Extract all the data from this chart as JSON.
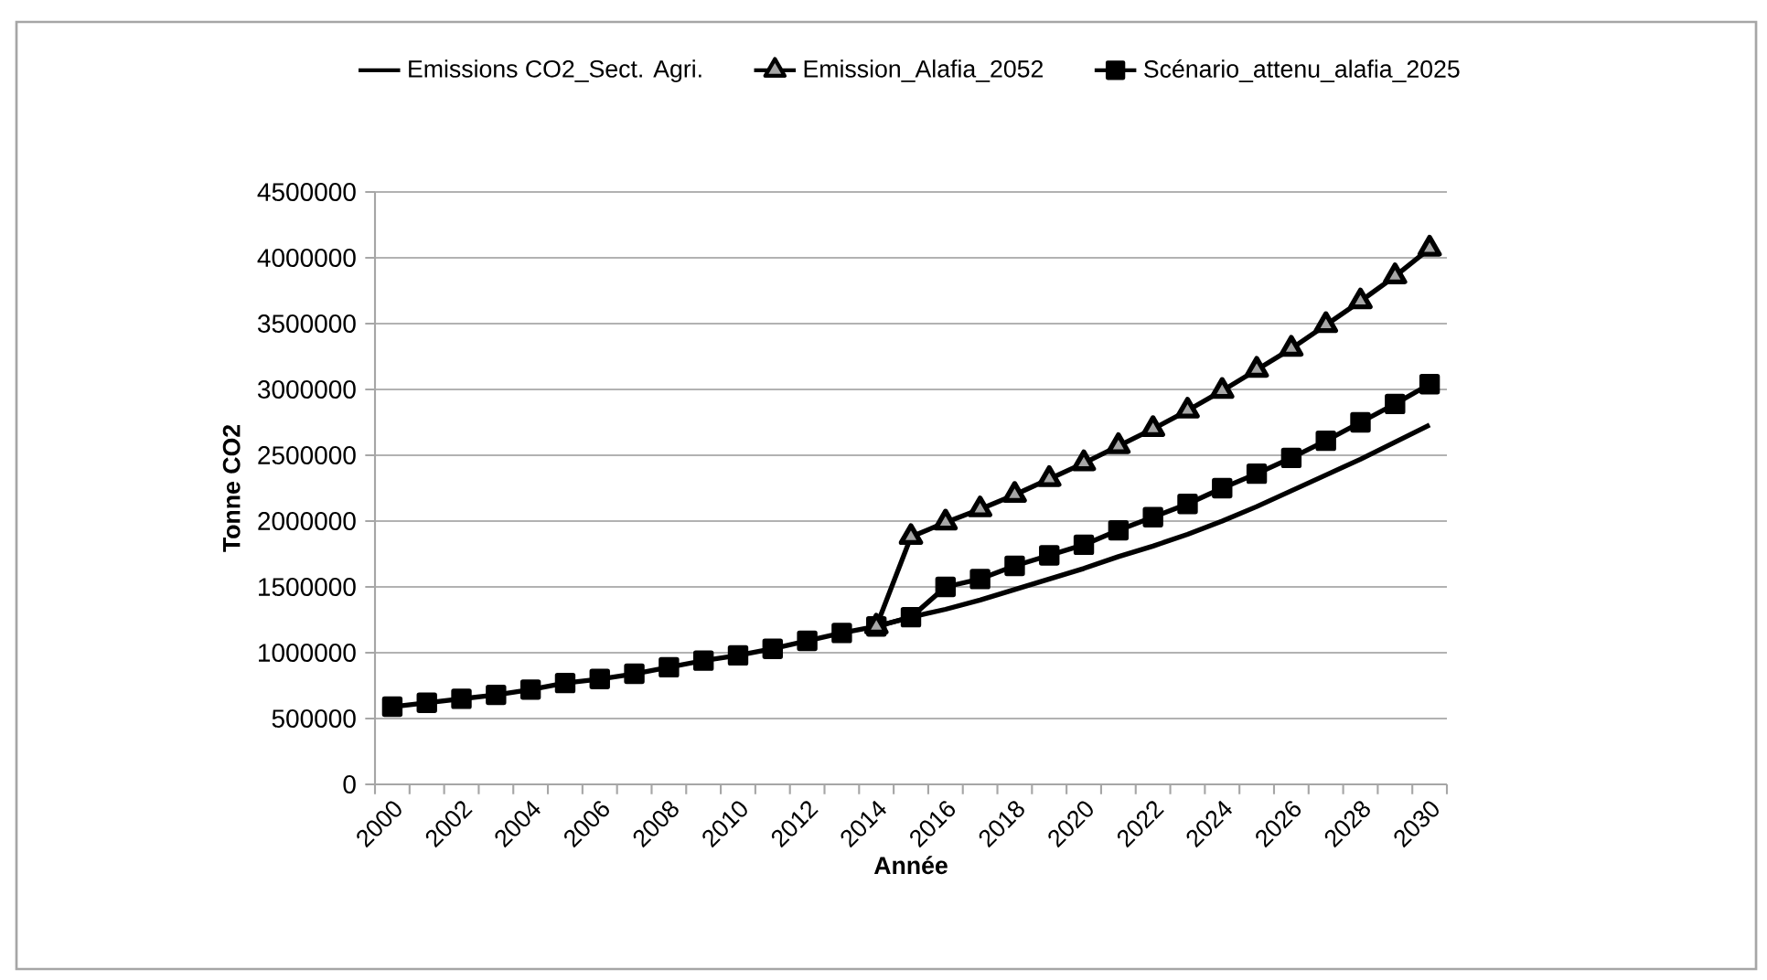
{
  "chart_data": {
    "type": "line",
    "xlabel": "Année",
    "ylabel": "Tonne CO2",
    "categories": [
      "2000",
      null,
      "2002",
      null,
      "2004",
      null,
      "2006",
      null,
      "2008",
      null,
      "2010",
      null,
      "2012",
      null,
      "2014",
      null,
      "2016",
      null,
      "2018",
      null,
      "2020",
      null,
      "2022",
      null,
      "2024",
      null,
      "2026",
      null,
      "2028",
      null,
      "2030"
    ],
    "series": [
      {
        "name": "Emissions CO2_Sect. Agri.",
        "color": "#000000",
        "marker": "none",
        "values": [
          null,
          null,
          null,
          null,
          null,
          null,
          null,
          null,
          null,
          null,
          null,
          null,
          null,
          null,
          1200000,
          1270000,
          1330000,
          1400000,
          1480000,
          1560000,
          1640000,
          1730000,
          1810000,
          1900000,
          2000000,
          2110000,
          2230000,
          2350000,
          2470000,
          2600000,
          2730000
        ]
      },
      {
        "name": "Emission_Alafia_2052",
        "color": "#000000",
        "marker": "triangle",
        "values": [
          null,
          null,
          null,
          null,
          null,
          null,
          null,
          null,
          null,
          null,
          null,
          null,
          null,
          null,
          1200000,
          1880000,
          1990000,
          2090000,
          2200000,
          2320000,
          2440000,
          2570000,
          2700000,
          2840000,
          2990000,
          3150000,
          3310000,
          3490000,
          3670000,
          3860000,
          4070000
        ]
      },
      {
        "name": "Scénario_attenu_alafia_2025",
        "color": "#000000",
        "marker": "square",
        "values": [
          590000,
          620000,
          650000,
          680000,
          720000,
          770000,
          800000,
          840000,
          890000,
          940000,
          980000,
          1030000,
          1090000,
          1150000,
          1200000,
          1270000,
          1500000,
          1560000,
          1660000,
          1740000,
          1820000,
          1930000,
          2030000,
          2130000,
          2250000,
          2360000,
          2480000,
          2610000,
          2750000,
          2890000,
          3040000
        ]
      }
    ],
    "ylim": [
      0,
      4500000
    ],
    "yticks": [
      0,
      500000,
      1000000,
      1500000,
      2000000,
      2500000,
      3000000,
      3500000,
      4000000,
      4500000
    ],
    "grid": "y",
    "legend": "top"
  }
}
